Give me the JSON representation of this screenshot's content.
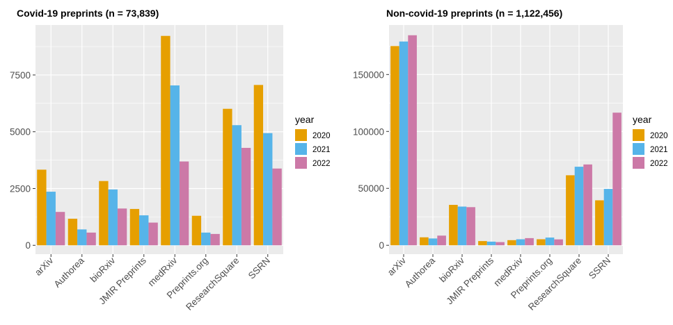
{
  "legend": {
    "title": "year",
    "items": [
      {
        "label": "2020",
        "color": "#E69F00"
      },
      {
        "label": "2021",
        "color": "#56B4E9"
      },
      {
        "label": "2022",
        "color": "#CC79A7"
      }
    ]
  },
  "chart_data": [
    {
      "type": "bar",
      "title": "Covid-19 preprints (n = 73,839)",
      "xlabel": "",
      "ylabel": "",
      "categories": [
        "arXiv",
        "Authorea",
        "bioRxiv",
        "JMIR Preprints",
        "medRxiv",
        "Preprints.org",
        "ResearchSquare",
        "SSRN"
      ],
      "series": [
        {
          "name": "2020",
          "values": [
            3330,
            1170,
            2830,
            1600,
            9220,
            1300,
            6010,
            7060
          ]
        },
        {
          "name": "2021",
          "values": [
            2360,
            700,
            2460,
            1320,
            7040,
            560,
            5290,
            4940
          ]
        },
        {
          "name": "2022",
          "values": [
            1470,
            560,
            1620,
            1000,
            3690,
            500,
            4290,
            3380
          ]
        }
      ],
      "ylim": [
        -390,
        9700
      ],
      "yticks": [
        0,
        2500,
        5000,
        7500
      ],
      "ytick_labels": [
        "0",
        "2500",
        "5000",
        "7500"
      ],
      "grid": true,
      "legend_position": "right"
    },
    {
      "type": "bar",
      "title": "Non-covid-19 preprints (n = 1,122,456)",
      "xlabel": "",
      "ylabel": "",
      "categories": [
        "arXiv",
        "Authorea",
        "bioRxiv",
        "JMIR Preprints",
        "medRxiv",
        "Preprints.org",
        "ResearchSquare",
        "SSRN"
      ],
      "series": [
        {
          "name": "2020",
          "values": [
            175000,
            7000,
            35500,
            3700,
            4500,
            5300,
            61500,
            39500
          ]
        },
        {
          "name": "2021",
          "values": [
            179000,
            6000,
            34000,
            3200,
            5300,
            6800,
            69000,
            49500
          ]
        },
        {
          "name": "2022",
          "values": [
            184500,
            8500,
            33500,
            2800,
            6300,
            5200,
            71000,
            116500
          ]
        }
      ],
      "ylim": [
        -7800,
        193500
      ],
      "yticks": [
        0,
        50000,
        100000,
        150000
      ],
      "ytick_labels": [
        "0",
        "50000",
        "100000",
        "150000"
      ],
      "grid": true,
      "legend_position": "right"
    }
  ]
}
